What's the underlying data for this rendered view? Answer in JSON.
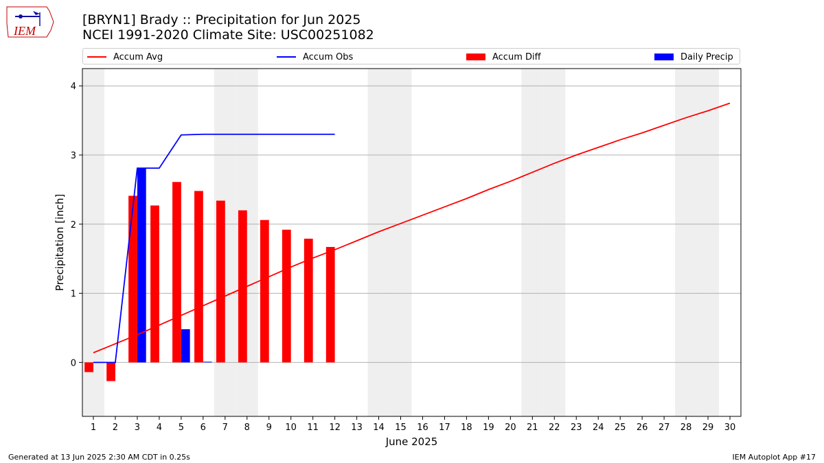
{
  "title_line1": "[BRYN1] Brady :: Precipitation for Jun 2025",
  "title_line2": "NCEI 1991-2020 Climate Site: USC00251082",
  "logo_text": "IEM",
  "footer_left": "Generated at 13 Jun 2025 2:30 AM CDT in 0.25s",
  "footer_right": "IEM Autoplot App #17",
  "colors": {
    "avg": "#ff0000",
    "obs": "#0000ff",
    "diff": "#ff0000",
    "daily": "#0000ff",
    "shade": "#efefef",
    "grid": "#b0b0b0"
  },
  "chart_data": {
    "type": "bar",
    "xlabel": "June 2025",
    "ylabel": "Precipitation [inch]",
    "xlim": [
      0.5,
      30.5
    ],
    "ylim": [
      -0.78,
      4.25
    ],
    "yticks": [
      0,
      1,
      2,
      3,
      4
    ],
    "days": [
      1,
      2,
      3,
      4,
      5,
      6,
      7,
      8,
      9,
      10,
      11,
      12,
      13,
      14,
      15,
      16,
      17,
      18,
      19,
      20,
      21,
      22,
      23,
      24,
      25,
      26,
      27,
      28,
      29,
      30
    ],
    "weekend_days": [
      1,
      7,
      8,
      14,
      15,
      21,
      22,
      28,
      29
    ],
    "legend_location": "top",
    "series": [
      {
        "name": "Accum Avg",
        "kind": "line",
        "x": [
          1,
          2,
          3,
          4,
          5,
          6,
          7,
          8,
          9,
          10,
          11,
          12,
          13,
          14,
          15,
          16,
          17,
          18,
          19,
          20,
          21,
          22,
          23,
          24,
          25,
          26,
          27,
          28,
          29,
          30
        ],
        "values": [
          0.14,
          0.27,
          0.4,
          0.54,
          0.68,
          0.82,
          0.96,
          1.1,
          1.24,
          1.38,
          1.51,
          1.63,
          1.76,
          1.89,
          2.01,
          2.13,
          2.25,
          2.37,
          2.5,
          2.62,
          2.75,
          2.88,
          3.0,
          3.11,
          3.22,
          3.32,
          3.43,
          3.54,
          3.64,
          3.75
        ]
      },
      {
        "name": "Accum Obs",
        "kind": "line",
        "x": [
          1,
          2,
          3,
          4,
          5,
          6,
          7,
          8,
          9,
          10,
          11,
          12
        ],
        "values": [
          0.0,
          0.0,
          2.81,
          2.81,
          3.29,
          3.3,
          3.3,
          3.3,
          3.3,
          3.3,
          3.3,
          3.3
        ]
      },
      {
        "name": "Accum Diff",
        "kind": "bar",
        "x": [
          1,
          2,
          3,
          4,
          5,
          6,
          7,
          8,
          9,
          10,
          11,
          12
        ],
        "values": [
          -0.14,
          -0.27,
          2.41,
          2.27,
          2.61,
          2.48,
          2.34,
          2.2,
          2.06,
          1.92,
          1.79,
          1.67
        ]
      },
      {
        "name": "Daily Precip",
        "kind": "bar",
        "x": [
          1,
          2,
          3,
          4,
          5,
          6,
          7,
          8,
          9,
          10,
          11,
          12
        ],
        "values": [
          0.0,
          0.0,
          2.81,
          0.0,
          0.48,
          0.01,
          0.0,
          0.0,
          0.0,
          0.0,
          0.0,
          0.0
        ]
      }
    ]
  }
}
